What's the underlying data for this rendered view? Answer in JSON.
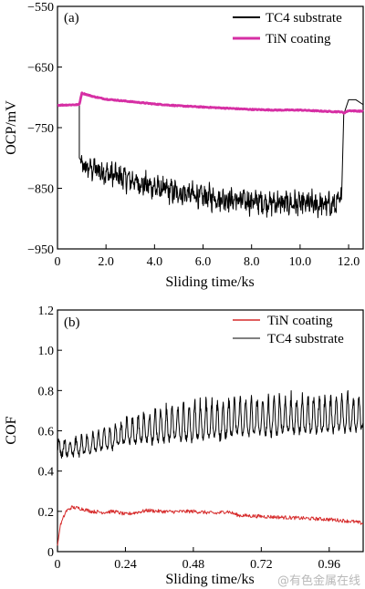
{
  "chart_data": [
    {
      "type": "line",
      "panel_label": "(a)",
      "xlabel": "Sliding time/ks",
      "ylabel": "OCP/mV",
      "xlim": [
        0,
        12.6
      ],
      "ylim": [
        -950,
        -550
      ],
      "xticks": [
        0,
        2.0,
        4.0,
        6.0,
        8.0,
        10.0,
        12.0
      ],
      "xtick_labels": [
        "0",
        "2.0",
        "4.0",
        "6.0",
        "8.0",
        "10.0",
        "12.0"
      ],
      "yticks": [
        -950,
        -850,
        -750,
        -650,
        -550
      ],
      "ytick_labels": [
        "−950",
        "−850",
        "−750",
        "−650",
        "−550"
      ],
      "legend_position": "top-right",
      "series": [
        {
          "name": "TC4 substrate",
          "color": "#000000",
          "x": [
            0,
            0.9,
            0.9,
            1.0,
            1.5,
            2.0,
            2.5,
            3.0,
            3.5,
            4.0,
            4.5,
            5.0,
            5.5,
            6.0,
            6.5,
            7.0,
            7.5,
            8.0,
            8.5,
            9.0,
            9.5,
            10.0,
            10.5,
            11.0,
            11.5,
            11.7,
            11.8,
            12.0,
            12.3,
            12.6
          ],
          "y": [
            -712,
            -712,
            -800,
            -815,
            -818,
            -825,
            -830,
            -836,
            -843,
            -848,
            -853,
            -858,
            -860,
            -864,
            -866,
            -868,
            -870,
            -872,
            -873,
            -874,
            -875,
            -876,
            -876,
            -877,
            -877,
            -868,
            -728,
            -704,
            -704,
            -712
          ],
          "noise_amplitude": 22
        },
        {
          "name": "TiN coating",
          "color": "#d62fa4",
          "x": [
            0,
            0.9,
            1.0,
            1.5,
            2.0,
            3.0,
            4.0,
            5.0,
            6.0,
            7.0,
            8.0,
            9.0,
            10.0,
            11.0,
            11.7,
            11.8,
            12.0,
            12.6
          ],
          "y": [
            -713,
            -712,
            -693,
            -699,
            -703,
            -707,
            -711,
            -714,
            -716,
            -718,
            -720,
            -721,
            -721,
            -723,
            -724,
            -726,
            -722,
            -723
          ]
        }
      ]
    },
    {
      "type": "line",
      "panel_label": "(b)",
      "xlabel": "Sliding time/ks",
      "ylabel": "COF",
      "xlim": [
        0,
        1.08
      ],
      "ylim": [
        0,
        1.2
      ],
      "xticks": [
        0,
        0.24,
        0.48,
        0.72,
        0.96
      ],
      "xtick_labels": [
        "0",
        "0.24",
        "0.48",
        "0.72",
        "0.96"
      ],
      "yticks": [
        0,
        0.2,
        0.4,
        0.6,
        0.8,
        1.0,
        1.2
      ],
      "ytick_labels": [
        "0",
        "0.2",
        "0.4",
        "0.6",
        "0.8",
        "1.0",
        "1.2"
      ],
      "legend_position": "top-right",
      "series": [
        {
          "name": "TiN coating",
          "color": "#d62a2a",
          "x": [
            0,
            0.01,
            0.03,
            0.05,
            0.08,
            0.12,
            0.16,
            0.2,
            0.24,
            0.28,
            0.32,
            0.36,
            0.4,
            0.48,
            0.56,
            0.6,
            0.64,
            0.72,
            0.8,
            0.88,
            0.96,
            1.04,
            1.08
          ],
          "y": [
            0.03,
            0.13,
            0.2,
            0.22,
            0.215,
            0.2,
            0.195,
            0.2,
            0.185,
            0.195,
            0.205,
            0.2,
            0.198,
            0.2,
            0.19,
            0.2,
            0.18,
            0.175,
            0.17,
            0.165,
            0.16,
            0.15,
            0.14
          ]
        },
        {
          "name": "TC4 substrate",
          "color": "#000000",
          "x": [
            0,
            0.05,
            0.1,
            0.15,
            0.2,
            0.25,
            0.3,
            0.35,
            0.4,
            0.45,
            0.5,
            0.55,
            0.6,
            0.65,
            0.7,
            0.75,
            0.8,
            0.85,
            0.9,
            0.95,
            1.0,
            1.05,
            1.08
          ],
          "y": [
            0.5,
            0.5,
            0.51,
            0.53,
            0.55,
            0.57,
            0.58,
            0.59,
            0.6,
            0.6,
            0.61,
            0.61,
            0.62,
            0.63,
            0.63,
            0.63,
            0.64,
            0.64,
            0.64,
            0.64,
            0.65,
            0.65,
            0.65
          ],
          "oscillation_amplitude": 0.1,
          "oscillation_period_ks": 0.02
        }
      ]
    }
  ],
  "watermark": "@有色金属在线"
}
